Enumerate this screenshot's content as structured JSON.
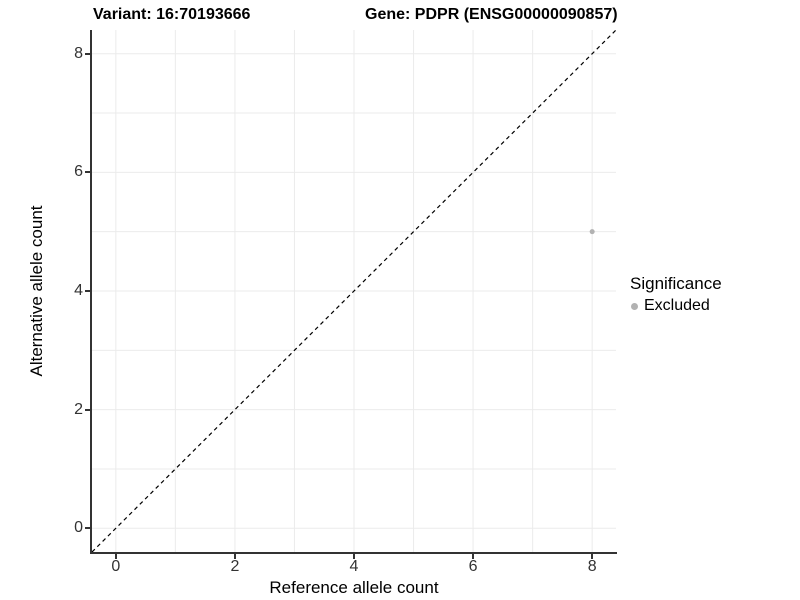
{
  "titles": {
    "variant": "Variant: 16:70193666",
    "gene": "Gene: PDPR (ENSG00000090857)"
  },
  "chart_data": {
    "type": "scatter",
    "title_left": "Variant: 16:70193666",
    "title_right": "Gene: PDPR (ENSG00000090857)",
    "xlabel": "Reference allele count",
    "ylabel": "Alternative allele count",
    "xlim": [
      -0.4,
      8.4
    ],
    "ylim": [
      -0.4,
      8.4
    ],
    "x_ticks": [
      0,
      2,
      4,
      6,
      8
    ],
    "y_ticks": [
      0,
      2,
      4,
      6,
      8
    ],
    "grid": true,
    "grid_every": 1,
    "grid_color": "#ebebeb",
    "axis_color": "#333333",
    "reference_line": {
      "type": "identity y=x",
      "style": "dashed",
      "color": "#000000"
    },
    "series": [
      {
        "name": "Excluded",
        "color": "#b2b2b2",
        "point_radius": 2.5,
        "points": [
          {
            "x": 8,
            "y": 5
          }
        ]
      }
    ],
    "legend": {
      "title": "Significance",
      "position": "right",
      "items": [
        {
          "label": "Excluded",
          "color": "#b2b2b2"
        }
      ]
    }
  }
}
